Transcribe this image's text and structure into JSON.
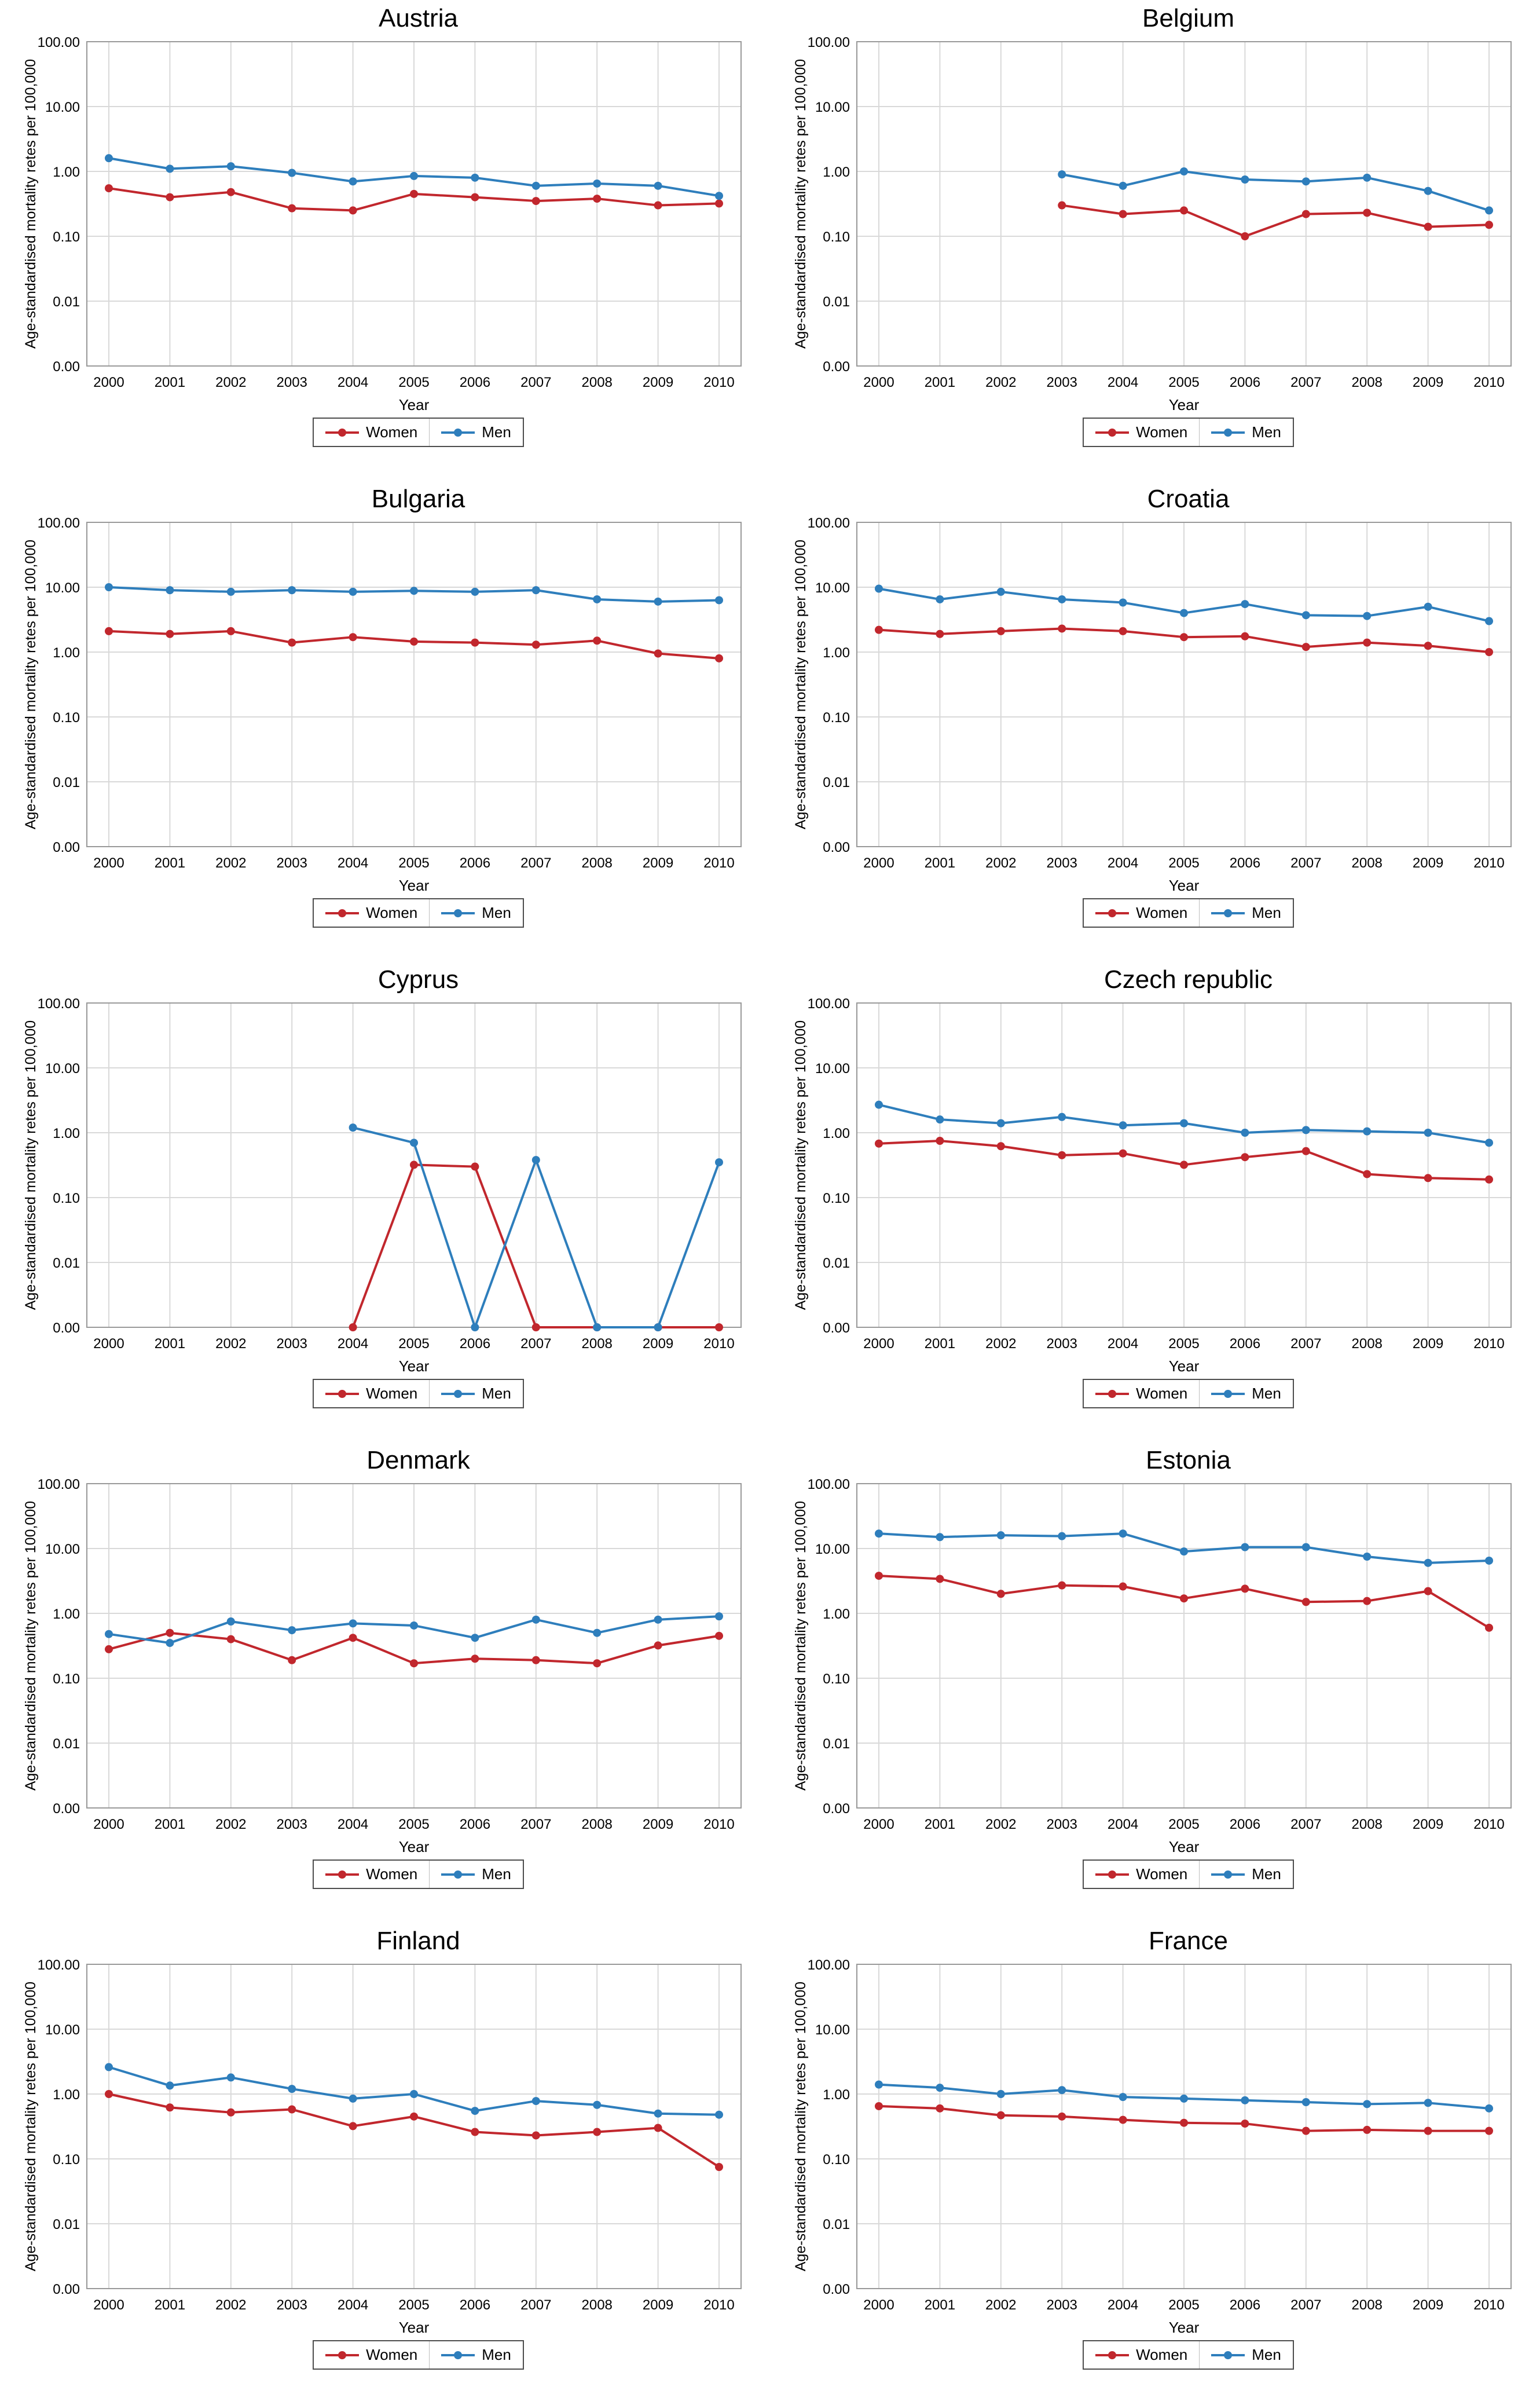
{
  "page": {
    "background": "#ffffff"
  },
  "chart_config": {
    "grid_color": "#d9d9d9",
    "frame_color": "#999999",
    "text_color": "#000000",
    "colors": {
      "women": "#c1272d",
      "men": "#2e7ebc"
    },
    "legend_labels": [
      "Women",
      "Men"
    ]
  },
  "chart_data": [
    {
      "type": "line",
      "title": "Austria",
      "xlabel": "Year",
      "ylabel": "Age-standardised mortality retes per 100,000",
      "y_scale": "log",
      "y_tick_labels": [
        "100.00",
        "10.00",
        "1.00",
        "0.10",
        "0.01",
        "0.00"
      ],
      "x": [
        "2000",
        "2001",
        "2002",
        "2003",
        "2004",
        "2005",
        "2006",
        "2007",
        "2008",
        "2009",
        "2010"
      ],
      "series": [
        {
          "name": "Women",
          "color": "#c1272d",
          "values": [
            0.55,
            0.4,
            0.48,
            0.27,
            0.25,
            0.45,
            0.4,
            0.35,
            0.38,
            0.3,
            0.32
          ]
        },
        {
          "name": "Men",
          "color": "#2e7ebc",
          "values": [
            1.6,
            1.1,
            1.2,
            0.95,
            0.7,
            0.85,
            0.8,
            0.6,
            0.65,
            0.6,
            0.42
          ]
        }
      ]
    },
    {
      "type": "line",
      "title": "Belgium",
      "xlabel": "Year",
      "ylabel": "Age-standardised mortality retes per 100,000",
      "y_scale": "log",
      "y_tick_labels": [
        "100.00",
        "10.00",
        "1.00",
        "0.10",
        "0.01",
        "0.00"
      ],
      "x": [
        "2000",
        "2001",
        "2002",
        "2003",
        "2004",
        "2005",
        "2006",
        "2007",
        "2008",
        "2009",
        "2010"
      ],
      "series": [
        {
          "name": "Women",
          "color": "#c1272d",
          "values": [
            null,
            null,
            null,
            0.3,
            0.22,
            0.25,
            0.1,
            0.22,
            0.23,
            0.14,
            0.15
          ]
        },
        {
          "name": "Men",
          "color": "#2e7ebc",
          "values": [
            null,
            null,
            null,
            0.9,
            0.6,
            1.0,
            0.75,
            0.7,
            0.8,
            0.5,
            0.25
          ]
        }
      ]
    },
    {
      "type": "line",
      "title": "Bulgaria",
      "xlabel": "Year",
      "ylabel": "Age-standardised mortality retes per 100,000",
      "y_scale": "log",
      "y_tick_labels": [
        "100.00",
        "10.00",
        "1.00",
        "0.10",
        "0.01",
        "0.00"
      ],
      "x": [
        "2000",
        "2001",
        "2002",
        "2003",
        "2004",
        "2005",
        "2006",
        "2007",
        "2008",
        "2009",
        "2010"
      ],
      "series": [
        {
          "name": "Women",
          "color": "#c1272d",
          "values": [
            2.1,
            1.9,
            2.1,
            1.4,
            1.7,
            1.45,
            1.4,
            1.3,
            1.5,
            0.95,
            0.8
          ]
        },
        {
          "name": "Men",
          "color": "#2e7ebc",
          "values": [
            10.0,
            9.0,
            8.5,
            9.0,
            8.5,
            8.8,
            8.5,
            9.0,
            6.5,
            6.0,
            6.3
          ]
        }
      ]
    },
    {
      "type": "line",
      "title": "Croatia",
      "xlabel": "Year",
      "ylabel": "Age-standardised mortality retes per 100,000",
      "y_scale": "log",
      "y_tick_labels": [
        "100.00",
        "10.00",
        "1.00",
        "0.10",
        "0.01",
        "0.00"
      ],
      "x": [
        "2000",
        "2001",
        "2002",
        "2003",
        "2004",
        "2005",
        "2006",
        "2007",
        "2008",
        "2009",
        "2010"
      ],
      "series": [
        {
          "name": "Women",
          "color": "#c1272d",
          "values": [
            2.2,
            1.9,
            2.1,
            2.3,
            2.1,
            1.7,
            1.75,
            1.2,
            1.4,
            1.25,
            1.0
          ]
        },
        {
          "name": "Men",
          "color": "#2e7ebc",
          "values": [
            9.5,
            6.5,
            8.5,
            6.5,
            5.8,
            4.0,
            5.5,
            3.7,
            3.6,
            5.0,
            3.0
          ]
        }
      ]
    },
    {
      "type": "line",
      "title": "Cyprus",
      "xlabel": "Year",
      "ylabel": "Age-standardised mortality retes per 100,000",
      "y_scale": "log",
      "y_tick_labels": [
        "100.00",
        "10.00",
        "1.00",
        "0.10",
        "0.01",
        "0.00"
      ],
      "x": [
        "2000",
        "2001",
        "2002",
        "2003",
        "2004",
        "2005",
        "2006",
        "2007",
        "2008",
        "2009",
        "2010"
      ],
      "series": [
        {
          "name": "Women",
          "color": "#c1272d",
          "values": [
            null,
            null,
            null,
            null,
            0,
            0.32,
            0.3,
            0,
            0,
            0,
            0
          ]
        },
        {
          "name": "Men",
          "color": "#2e7ebc",
          "values": [
            null,
            null,
            null,
            null,
            1.2,
            0.7,
            0,
            0.38,
            0,
            0,
            0.35
          ]
        }
      ]
    },
    {
      "type": "line",
      "title": "Czech republic",
      "xlabel": "Year",
      "ylabel": "Age-standardised mortality retes per 100,000",
      "y_scale": "log",
      "y_tick_labels": [
        "100.00",
        "10.00",
        "1.00",
        "0.10",
        "0.01",
        "0.00"
      ],
      "x": [
        "2000",
        "2001",
        "2002",
        "2003",
        "2004",
        "2005",
        "2006",
        "2007",
        "2008",
        "2009",
        "2010"
      ],
      "series": [
        {
          "name": "Women",
          "color": "#c1272d",
          "values": [
            0.68,
            0.75,
            0.62,
            0.45,
            0.48,
            0.32,
            0.42,
            0.52,
            0.23,
            0.2,
            0.19
          ]
        },
        {
          "name": "Men",
          "color": "#2e7ebc",
          "values": [
            2.7,
            1.6,
            1.4,
            1.75,
            1.3,
            1.4,
            1.0,
            1.1,
            1.05,
            1.0,
            0.7
          ]
        }
      ]
    },
    {
      "type": "line",
      "title": "Denmark",
      "xlabel": "Year",
      "ylabel": "Age-standardised mortality retes per 100,000",
      "y_scale": "log",
      "y_tick_labels": [
        "100.00",
        "10.00",
        "1.00",
        "0.10",
        "0.01",
        "0.00"
      ],
      "x": [
        "2000",
        "2001",
        "2002",
        "2003",
        "2004",
        "2005",
        "2006",
        "2007",
        "2008",
        "2009",
        "2010"
      ],
      "series": [
        {
          "name": "Women",
          "color": "#c1272d",
          "values": [
            0.28,
            0.5,
            0.4,
            0.19,
            0.42,
            0.17,
            0.2,
            0.19,
            0.17,
            0.32,
            0.45
          ]
        },
        {
          "name": "Men",
          "color": "#2e7ebc",
          "values": [
            0.48,
            0.35,
            0.75,
            0.55,
            0.7,
            0.65,
            0.42,
            0.8,
            0.5,
            0.8,
            0.9
          ]
        }
      ]
    },
    {
      "type": "line",
      "title": "Estonia",
      "xlabel": "Year",
      "ylabel": "Age-standardised mortality retes per 100,000",
      "y_scale": "log",
      "y_tick_labels": [
        "100.00",
        "10.00",
        "1.00",
        "0.10",
        "0.01",
        "0.00"
      ],
      "x": [
        "2000",
        "2001",
        "2002",
        "2003",
        "2004",
        "2005",
        "2006",
        "2007",
        "2008",
        "2009",
        "2010"
      ],
      "series": [
        {
          "name": "Women",
          "color": "#c1272d",
          "values": [
            3.8,
            3.4,
            2.0,
            2.7,
            2.6,
            1.7,
            2.4,
            1.5,
            1.55,
            2.2,
            0.6
          ]
        },
        {
          "name": "Men",
          "color": "#2e7ebc",
          "values": [
            17,
            15,
            16,
            15.5,
            17,
            9.0,
            10.5,
            10.5,
            7.5,
            6.0,
            6.5
          ]
        }
      ]
    },
    {
      "type": "line",
      "title": "Finland",
      "xlabel": "Year",
      "ylabel": "Age-standardised mortality retes per 100,000",
      "y_scale": "log",
      "y_tick_labels": [
        "100.00",
        "10.00",
        "1.00",
        "0.10",
        "0.01",
        "0.00"
      ],
      "x": [
        "2000",
        "2001",
        "2002",
        "2003",
        "2004",
        "2005",
        "2006",
        "2007",
        "2008",
        "2009",
        "2010"
      ],
      "series": [
        {
          "name": "Women",
          "color": "#c1272d",
          "values": [
            1.0,
            0.62,
            0.52,
            0.58,
            0.32,
            0.45,
            0.26,
            0.23,
            0.26,
            0.3,
            0.075
          ]
        },
        {
          "name": "Men",
          "color": "#2e7ebc",
          "values": [
            2.6,
            1.35,
            1.8,
            1.2,
            0.85,
            1.0,
            0.55,
            0.78,
            0.68,
            0.5,
            0.48
          ]
        }
      ]
    },
    {
      "type": "line",
      "title": "France",
      "xlabel": "Year",
      "ylabel": "Age-standardised mortality retes per 100,000",
      "y_scale": "log",
      "y_tick_labels": [
        "100.00",
        "10.00",
        "1.00",
        "0.10",
        "0.01",
        "0.00"
      ],
      "x": [
        "2000",
        "2001",
        "2002",
        "2003",
        "2004",
        "2005",
        "2006",
        "2007",
        "2008",
        "2009",
        "2010"
      ],
      "series": [
        {
          "name": "Women",
          "color": "#c1272d",
          "values": [
            0.65,
            0.6,
            0.47,
            0.45,
            0.4,
            0.36,
            0.35,
            0.27,
            0.28,
            0.27,
            0.27
          ]
        },
        {
          "name": "Men",
          "color": "#2e7ebc",
          "values": [
            1.4,
            1.25,
            1.0,
            1.15,
            0.9,
            0.85,
            0.8,
            0.75,
            0.7,
            0.73,
            0.6
          ]
        }
      ]
    }
  ]
}
